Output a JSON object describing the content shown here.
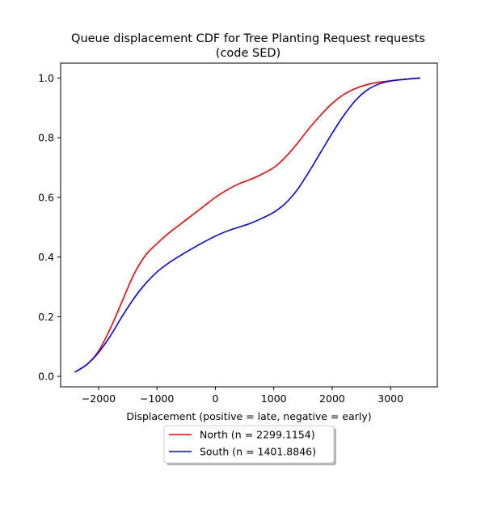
{
  "chart_data": {
    "type": "line",
    "title_line1": "Queue displacement CDF for Tree Planting Request  requests",
    "title_line2": "(code SED)",
    "xlabel": "Displacement (positive = late, negative = early)",
    "ylabel": "",
    "xlim": [
      -2650,
      3800
    ],
    "ylim": [
      -0.035,
      1.05
    ],
    "x_ticks": [
      -2000,
      -1000,
      0,
      1000,
      2000,
      3000
    ],
    "x_tick_labels": [
      "−2000",
      "−1000",
      "0",
      "1000",
      "2000",
      "3000"
    ],
    "y_ticks": [
      0.0,
      0.2,
      0.4,
      0.6,
      0.8,
      1.0
    ],
    "y_tick_labels": [
      "0.0",
      "0.2",
      "0.4",
      "0.6",
      "0.8",
      "1.0"
    ],
    "grid": false,
    "legend_position": "below",
    "series": [
      {
        "name": "North (n = 2299.1154)",
        "color": "#ff0000",
        "x": [
          -2400,
          -2200,
          -2000,
          -1800,
          -1600,
          -1400,
          -1200,
          -1000,
          -800,
          -600,
          -400,
          -200,
          0,
          200,
          400,
          600,
          800,
          1000,
          1200,
          1400,
          1600,
          1800,
          2000,
          2200,
          2400,
          2600,
          2800,
          3000,
          3200,
          3500
        ],
        "y": [
          0.015,
          0.04,
          0.085,
          0.16,
          0.25,
          0.34,
          0.405,
          0.445,
          0.48,
          0.51,
          0.54,
          0.57,
          0.6,
          0.625,
          0.645,
          0.66,
          0.678,
          0.7,
          0.735,
          0.78,
          0.83,
          0.875,
          0.915,
          0.945,
          0.965,
          0.978,
          0.986,
          0.991,
          0.995,
          1.0
        ]
      },
      {
        "name": "South (n = 1401.8846)",
        "color": "#0000ff",
        "x": [
          -2400,
          -2200,
          -2000,
          -1800,
          -1600,
          -1400,
          -1200,
          -1000,
          -800,
          -600,
          -400,
          -200,
          0,
          200,
          400,
          600,
          800,
          1000,
          1200,
          1400,
          1600,
          1800,
          2000,
          2200,
          2400,
          2600,
          2800,
          3000,
          3200,
          3500
        ],
        "y": [
          0.015,
          0.04,
          0.08,
          0.135,
          0.2,
          0.26,
          0.31,
          0.35,
          0.38,
          0.405,
          0.428,
          0.45,
          0.47,
          0.487,
          0.5,
          0.513,
          0.53,
          0.55,
          0.58,
          0.625,
          0.685,
          0.75,
          0.815,
          0.875,
          0.925,
          0.96,
          0.98,
          0.99,
          0.995,
          1.0
        ]
      }
    ]
  }
}
